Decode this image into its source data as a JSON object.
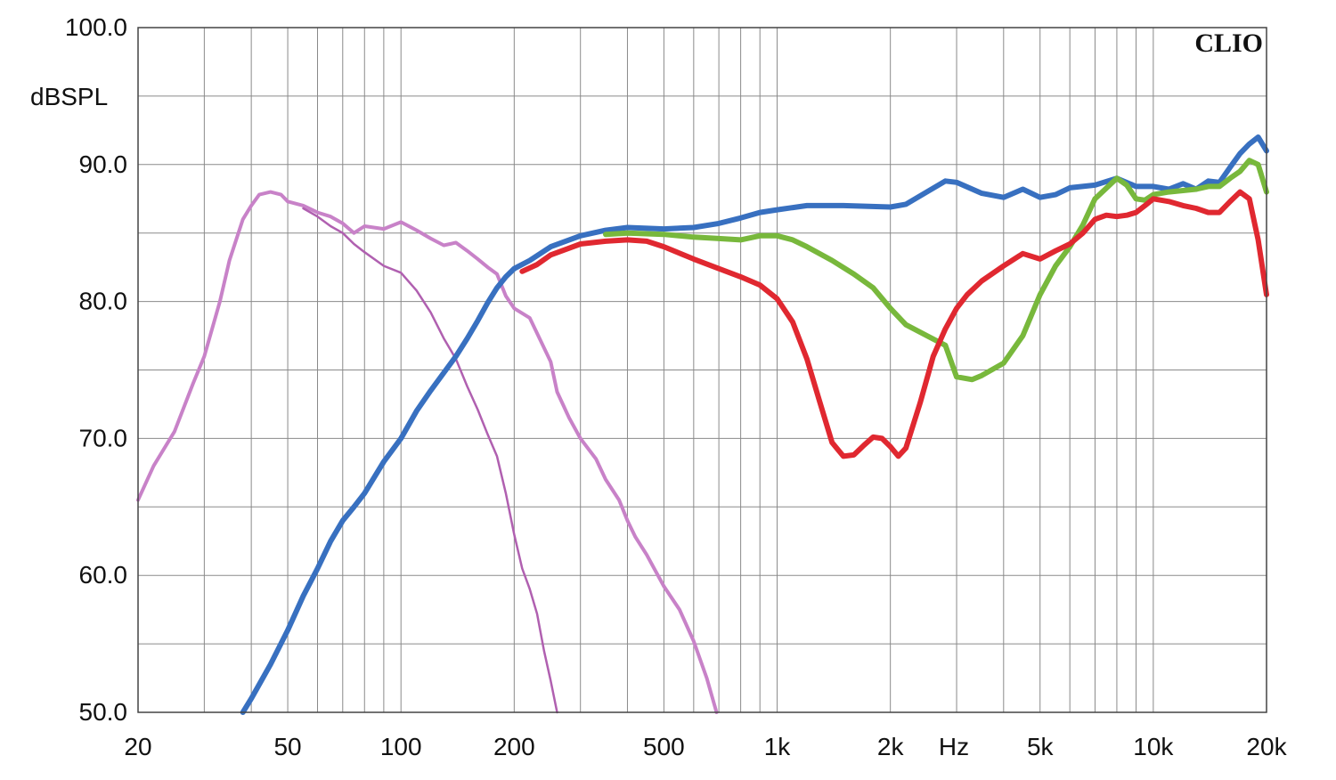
{
  "chart_data": {
    "type": "line",
    "brand": "CLIO",
    "ylabel": "dBSPL",
    "xlabel": "Hz",
    "xscale": "log",
    "xlim": [
      20,
      20000
    ],
    "ylim": [
      50,
      100
    ],
    "grid": true,
    "y_ticks": [
      {
        "value": 50,
        "label": "50.0"
      },
      {
        "value": 60,
        "label": "60.0"
      },
      {
        "value": 70,
        "label": "70.0"
      },
      {
        "value": 80,
        "label": "80.0"
      },
      {
        "value": 90,
        "label": "90.0"
      },
      {
        "value": 100,
        "label": "100.0"
      }
    ],
    "x_ticks": [
      {
        "value": 20,
        "label": "20"
      },
      {
        "value": 50,
        "label": "50"
      },
      {
        "value": 100,
        "label": "100"
      },
      {
        "value": 200,
        "label": "200"
      },
      {
        "value": 500,
        "label": "500"
      },
      {
        "value": 1000,
        "label": "1k"
      },
      {
        "value": 2000,
        "label": "2k"
      },
      {
        "value": 5000,
        "label": "5k"
      },
      {
        "value": 10000,
        "label": "10k"
      },
      {
        "value": 20000,
        "label": "20k"
      }
    ],
    "series": [
      {
        "color": "#c882c8",
        "width": 4,
        "points": [
          [
            20,
            65.5
          ],
          [
            22,
            68
          ],
          [
            25,
            70.5
          ],
          [
            28,
            74
          ],
          [
            30,
            76
          ],
          [
            33,
            80
          ],
          [
            35,
            83
          ],
          [
            38,
            86
          ],
          [
            40,
            87
          ],
          [
            42,
            87.8
          ],
          [
            45,
            88
          ],
          [
            48,
            87.8
          ],
          [
            50,
            87.3
          ],
          [
            55,
            87
          ],
          [
            60,
            86.5
          ],
          [
            65,
            86.2
          ],
          [
            70,
            85.7
          ],
          [
            75,
            85
          ],
          [
            80,
            85.5
          ],
          [
            90,
            85.3
          ],
          [
            100,
            85.8
          ],
          [
            110,
            85.2
          ],
          [
            120,
            84.6
          ],
          [
            130,
            84.1
          ],
          [
            140,
            84.3
          ],
          [
            150,
            83.7
          ],
          [
            160,
            83.1
          ],
          [
            170,
            82.5
          ],
          [
            180,
            82
          ],
          [
            190,
            80.4
          ],
          [
            200,
            79.5
          ],
          [
            220,
            78.8
          ],
          [
            250,
            75.6
          ],
          [
            260,
            73.4
          ],
          [
            280,
            71.5
          ],
          [
            300,
            70
          ],
          [
            330,
            68.5
          ],
          [
            350,
            67
          ],
          [
            380,
            65.5
          ],
          [
            400,
            64
          ],
          [
            420,
            62.8
          ],
          [
            450,
            61.5
          ],
          [
            500,
            59.2
          ],
          [
            550,
            57.5
          ],
          [
            600,
            55.2
          ],
          [
            650,
            52.5
          ],
          [
            690,
            50
          ]
        ]
      },
      {
        "color": "#b060b0",
        "width": 2.5,
        "points": [
          [
            55,
            86.8
          ],
          [
            60,
            86.2
          ],
          [
            65,
            85.5
          ],
          [
            70,
            85
          ],
          [
            75,
            84.2
          ],
          [
            80,
            83.6
          ],
          [
            90,
            82.6
          ],
          [
            100,
            82.1
          ],
          [
            110,
            80.8
          ],
          [
            120,
            79.2
          ],
          [
            130,
            77.3
          ],
          [
            140,
            75.8
          ],
          [
            150,
            73.8
          ],
          [
            160,
            72.1
          ],
          [
            170,
            70.3
          ],
          [
            180,
            68.7
          ],
          [
            190,
            66
          ],
          [
            200,
            63
          ],
          [
            210,
            60.5
          ],
          [
            220,
            59
          ],
          [
            230,
            57.2
          ],
          [
            240,
            54.5
          ],
          [
            250,
            52.3
          ],
          [
            260,
            50
          ]
        ]
      },
      {
        "color": "#3870c0",
        "width": 6,
        "points": [
          [
            38,
            50
          ],
          [
            40,
            51
          ],
          [
            45,
            53.5
          ],
          [
            50,
            56
          ],
          [
            55,
            58.5
          ],
          [
            60,
            60.5
          ],
          [
            65,
            62.5
          ],
          [
            70,
            64
          ],
          [
            75,
            65
          ],
          [
            80,
            66
          ],
          [
            90,
            68.3
          ],
          [
            100,
            70
          ],
          [
            110,
            72
          ],
          [
            120,
            73.5
          ],
          [
            130,
            74.8
          ],
          [
            140,
            76
          ],
          [
            150,
            77.3
          ],
          [
            160,
            78.6
          ],
          [
            170,
            79.9
          ],
          [
            180,
            81
          ],
          [
            190,
            81.8
          ],
          [
            200,
            82.4
          ],
          [
            220,
            83
          ],
          [
            250,
            84
          ],
          [
            300,
            84.8
          ],
          [
            350,
            85.2
          ],
          [
            400,
            85.4
          ],
          [
            500,
            85.3
          ],
          [
            600,
            85.4
          ],
          [
            700,
            85.7
          ],
          [
            800,
            86.1
          ],
          [
            900,
            86.5
          ],
          [
            1000,
            86.7
          ],
          [
            1200,
            87
          ],
          [
            1500,
            87
          ],
          [
            2000,
            86.9
          ],
          [
            2200,
            87.1
          ],
          [
            2500,
            88
          ],
          [
            2800,
            88.8
          ],
          [
            3000,
            88.7
          ],
          [
            3500,
            87.9
          ],
          [
            4000,
            87.6
          ],
          [
            4500,
            88.2
          ],
          [
            5000,
            87.6
          ],
          [
            5500,
            87.8
          ],
          [
            6000,
            88.3
          ],
          [
            7000,
            88.5
          ],
          [
            8000,
            89
          ],
          [
            9000,
            88.4
          ],
          [
            10000,
            88.4
          ],
          [
            11000,
            88.2
          ],
          [
            12000,
            88.6
          ],
          [
            13000,
            88.2
          ],
          [
            14000,
            88.8
          ],
          [
            15000,
            88.7
          ],
          [
            16000,
            89.8
          ],
          [
            17000,
            90.8
          ],
          [
            18000,
            91.5
          ],
          [
            19000,
            92
          ],
          [
            20000,
            91
          ]
        ]
      },
      {
        "color": "#78b83c",
        "width": 6,
        "points": [
          [
            350,
            84.9
          ],
          [
            400,
            85
          ],
          [
            500,
            84.9
          ],
          [
            600,
            84.7
          ],
          [
            700,
            84.6
          ],
          [
            800,
            84.5
          ],
          [
            900,
            84.8
          ],
          [
            1000,
            84.8
          ],
          [
            1100,
            84.5
          ],
          [
            1200,
            84
          ],
          [
            1400,
            83
          ],
          [
            1600,
            82
          ],
          [
            1800,
            81
          ],
          [
            2000,
            79.5
          ],
          [
            2200,
            78.3
          ],
          [
            2500,
            77.5
          ],
          [
            2800,
            76.8
          ],
          [
            3000,
            74.5
          ],
          [
            3300,
            74.3
          ],
          [
            3500,
            74.6
          ],
          [
            4000,
            75.5
          ],
          [
            4500,
            77.5
          ],
          [
            5000,
            80.5
          ],
          [
            5500,
            82.6
          ],
          [
            6000,
            84
          ],
          [
            6500,
            85.6
          ],
          [
            7000,
            87.5
          ],
          [
            8000,
            89
          ],
          [
            8500,
            88.5
          ],
          [
            9000,
            87.5
          ],
          [
            9500,
            87.4
          ],
          [
            10000,
            87.8
          ],
          [
            11000,
            88
          ],
          [
            12000,
            88.1
          ],
          [
            13000,
            88.2
          ],
          [
            14000,
            88.4
          ],
          [
            15000,
            88.4
          ],
          [
            16000,
            89
          ],
          [
            17000,
            89.5
          ],
          [
            18000,
            90.3
          ],
          [
            19000,
            90
          ],
          [
            20000,
            88
          ]
        ]
      },
      {
        "color": "#e02830",
        "width": 6,
        "points": [
          [
            210,
            82.2
          ],
          [
            230,
            82.7
          ],
          [
            250,
            83.4
          ],
          [
            300,
            84.2
          ],
          [
            350,
            84.4
          ],
          [
            400,
            84.5
          ],
          [
            450,
            84.4
          ],
          [
            500,
            84
          ],
          [
            600,
            83.1
          ],
          [
            700,
            82.4
          ],
          [
            800,
            81.8
          ],
          [
            900,
            81.2
          ],
          [
            1000,
            80.2
          ],
          [
            1100,
            78.5
          ],
          [
            1200,
            75.8
          ],
          [
            1300,
            72.6
          ],
          [
            1400,
            69.7
          ],
          [
            1500,
            68.7
          ],
          [
            1600,
            68.8
          ],
          [
            1700,
            69.5
          ],
          [
            1800,
            70.1
          ],
          [
            1900,
            70
          ],
          [
            2000,
            69.4
          ],
          [
            2100,
            68.7
          ],
          [
            2200,
            69.3
          ],
          [
            2400,
            72.6
          ],
          [
            2600,
            76
          ],
          [
            2800,
            78
          ],
          [
            3000,
            79.5
          ],
          [
            3200,
            80.5
          ],
          [
            3500,
            81.5
          ],
          [
            4000,
            82.6
          ],
          [
            4500,
            83.5
          ],
          [
            5000,
            83.1
          ],
          [
            5500,
            83.7
          ],
          [
            6000,
            84.2
          ],
          [
            6500,
            85
          ],
          [
            7000,
            86
          ],
          [
            7500,
            86.3
          ],
          [
            8000,
            86.2
          ],
          [
            8500,
            86.3
          ],
          [
            9000,
            86.5
          ],
          [
            9500,
            87
          ],
          [
            10000,
            87.5
          ],
          [
            11000,
            87.3
          ],
          [
            12000,
            87
          ],
          [
            13000,
            86.8
          ],
          [
            14000,
            86.5
          ],
          [
            15000,
            86.5
          ],
          [
            16000,
            87.3
          ],
          [
            17000,
            88
          ],
          [
            18000,
            87.5
          ],
          [
            19000,
            84.5
          ],
          [
            20000,
            80.5
          ]
        ]
      }
    ]
  }
}
